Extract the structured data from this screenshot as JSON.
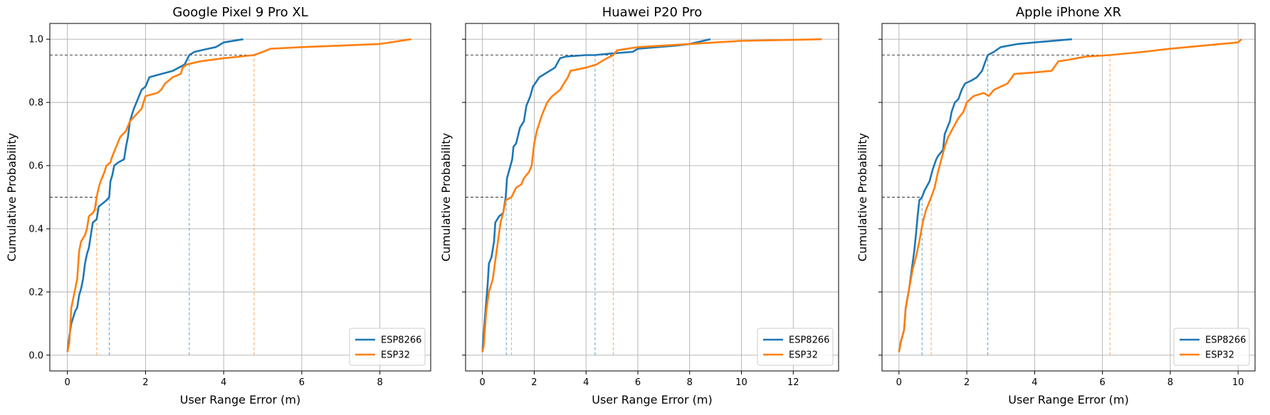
{
  "chart_data": [
    {
      "type": "line",
      "title": "Google Pixel 9 Pro XL",
      "xlabel": "User Range Error (m)",
      "ylabel": "Cumulative Probability",
      "xlim": [
        -0.45,
        9.3
      ],
      "ylim": [
        -0.05,
        1.05
      ],
      "xticks": [
        0,
        2,
        4,
        6,
        8
      ],
      "yticks": [
        0.0,
        0.2,
        0.4,
        0.6,
        0.8,
        1.0
      ],
      "xtick_labels": [
        "0",
        "2",
        "4",
        "6",
        "8"
      ],
      "ytick_labels": [
        "0.0",
        "0.2",
        "0.4",
        "0.6",
        "0.8",
        "1.0"
      ],
      "grid": true,
      "legend_position": "lower-right",
      "series": [
        {
          "name": "ESP8266",
          "color": "#1f77b4",
          "p50": 1.07,
          "p95": 3.12,
          "points": [
            [
              0,
              0.01
            ],
            [
              0.05,
              0.06
            ],
            [
              0.1,
              0.1
            ],
            [
              0.2,
              0.14
            ],
            [
              0.25,
              0.15
            ],
            [
              0.3,
              0.19
            ],
            [
              0.35,
              0.21
            ],
            [
              0.4,
              0.24
            ],
            [
              0.45,
              0.29
            ],
            [
              0.5,
              0.32
            ],
            [
              0.55,
              0.34
            ],
            [
              0.6,
              0.38
            ],
            [
              0.65,
              0.42
            ],
            [
              0.75,
              0.43
            ],
            [
              0.8,
              0.47
            ],
            [
              1.0,
              0.49
            ],
            [
              1.07,
              0.5
            ],
            [
              1.1,
              0.55
            ],
            [
              1.15,
              0.57
            ],
            [
              1.2,
              0.6
            ],
            [
              1.3,
              0.61
            ],
            [
              1.45,
              0.62
            ],
            [
              1.5,
              0.66
            ],
            [
              1.55,
              0.69
            ],
            [
              1.6,
              0.74
            ],
            [
              1.7,
              0.78
            ],
            [
              1.8,
              0.81
            ],
            [
              1.9,
              0.84
            ],
            [
              2.0,
              0.85
            ],
            [
              2.1,
              0.88
            ],
            [
              2.4,
              0.89
            ],
            [
              2.7,
              0.9
            ],
            [
              3.0,
              0.92
            ],
            [
              3.12,
              0.95
            ],
            [
              3.25,
              0.96
            ],
            [
              3.6,
              0.97
            ],
            [
              3.8,
              0.975
            ],
            [
              4.0,
              0.99
            ],
            [
              4.5,
              1.0
            ]
          ]
        },
        {
          "name": "ESP32",
          "color": "#ff7f0e",
          "p50": 0.75,
          "p95": 4.78,
          "points": [
            [
              0,
              0.01
            ],
            [
              0.05,
              0.04
            ],
            [
              0.1,
              0.15
            ],
            [
              0.15,
              0.18
            ],
            [
              0.25,
              0.24
            ],
            [
              0.3,
              0.33
            ],
            [
              0.35,
              0.36
            ],
            [
              0.45,
              0.38
            ],
            [
              0.5,
              0.4
            ],
            [
              0.55,
              0.44
            ],
            [
              0.65,
              0.45
            ],
            [
              0.7,
              0.46
            ],
            [
              0.75,
              0.5
            ],
            [
              0.8,
              0.53
            ],
            [
              0.85,
              0.55
            ],
            [
              0.95,
              0.58
            ],
            [
              1.0,
              0.6
            ],
            [
              1.1,
              0.61
            ],
            [
              1.15,
              0.63
            ],
            [
              1.25,
              0.66
            ],
            [
              1.35,
              0.69
            ],
            [
              1.5,
              0.71
            ],
            [
              1.6,
              0.74
            ],
            [
              1.75,
              0.76
            ],
            [
              1.9,
              0.78
            ],
            [
              2.0,
              0.82
            ],
            [
              2.3,
              0.83
            ],
            [
              2.4,
              0.84
            ],
            [
              2.5,
              0.86
            ],
            [
              2.6,
              0.87
            ],
            [
              2.7,
              0.88
            ],
            [
              2.9,
              0.89
            ],
            [
              2.95,
              0.91
            ],
            [
              3.05,
              0.92
            ],
            [
              3.4,
              0.93
            ],
            [
              4.0,
              0.94
            ],
            [
              4.78,
              0.95
            ],
            [
              5.0,
              0.96
            ],
            [
              5.2,
              0.97
            ],
            [
              6.0,
              0.975
            ],
            [
              8.0,
              0.985
            ],
            [
              8.8,
              1.0
            ]
          ]
        }
      ]
    },
    {
      "type": "line",
      "title": "Huawei P20 Pro",
      "xlabel": "User Range Error (m)",
      "ylabel": "Cumulative Probability",
      "xlim": [
        -0.65,
        13.75
      ],
      "ylim": [
        -0.05,
        1.05
      ],
      "xticks": [
        0,
        2,
        4,
        6,
        8,
        10,
        12
      ],
      "yticks": [
        0.0,
        0.2,
        0.4,
        0.6,
        0.8,
        1.0
      ],
      "xtick_labels": [
        "0",
        "2",
        "4",
        "6",
        "8",
        "10",
        "12"
      ],
      "ytick_labels": [
        "0.0",
        "0.2",
        "0.4",
        "0.6",
        "0.8",
        "1.0"
      ],
      "grid": true,
      "legend_position": "lower-right",
      "series": [
        {
          "name": "ESP8266",
          "color": "#1f77b4",
          "p50": 0.92,
          "p95": 4.35,
          "points": [
            [
              0,
              0.01
            ],
            [
              0.05,
              0.07
            ],
            [
              0.12,
              0.14
            ],
            [
              0.2,
              0.22
            ],
            [
              0.25,
              0.29
            ],
            [
              0.35,
              0.31
            ],
            [
              0.45,
              0.36
            ],
            [
              0.5,
              0.42
            ],
            [
              0.65,
              0.44
            ],
            [
              0.8,
              0.45
            ],
            [
              0.9,
              0.5
            ],
            [
              0.95,
              0.56
            ],
            [
              1.05,
              0.59
            ],
            [
              1.15,
              0.62
            ],
            [
              1.2,
              0.66
            ],
            [
              1.3,
              0.67
            ],
            [
              1.45,
              0.72
            ],
            [
              1.6,
              0.74
            ],
            [
              1.7,
              0.79
            ],
            [
              1.85,
              0.82
            ],
            [
              1.95,
              0.85
            ],
            [
              2.2,
              0.88
            ],
            [
              2.4,
              0.89
            ],
            [
              2.8,
              0.91
            ],
            [
              3.0,
              0.94
            ],
            [
              3.2,
              0.945
            ],
            [
              4.0,
              0.95
            ],
            [
              4.35,
              0.95
            ],
            [
              5.0,
              0.955
            ],
            [
              5.8,
              0.96
            ],
            [
              6.0,
              0.97
            ],
            [
              7.5,
              0.98
            ],
            [
              8.0,
              0.985
            ],
            [
              8.8,
              1.0
            ]
          ]
        },
        {
          "name": "ESP32",
          "color": "#ff7f0e",
          "p50": 1.12,
          "p95": 5.05,
          "points": [
            [
              0,
              0.01
            ],
            [
              0.05,
              0.03
            ],
            [
              0.15,
              0.14
            ],
            [
              0.25,
              0.2
            ],
            [
              0.4,
              0.24
            ],
            [
              0.5,
              0.3
            ],
            [
              0.6,
              0.36
            ],
            [
              0.7,
              0.42
            ],
            [
              0.8,
              0.45
            ],
            [
              0.9,
              0.49
            ],
            [
              1.12,
              0.5
            ],
            [
              1.3,
              0.53
            ],
            [
              1.5,
              0.54
            ],
            [
              1.6,
              0.56
            ],
            [
              1.8,
              0.58
            ],
            [
              1.9,
              0.6
            ],
            [
              2.0,
              0.67
            ],
            [
              2.1,
              0.71
            ],
            [
              2.3,
              0.76
            ],
            [
              2.5,
              0.8
            ],
            [
              2.7,
              0.82
            ],
            [
              3.0,
              0.84
            ],
            [
              3.3,
              0.88
            ],
            [
              3.4,
              0.9
            ],
            [
              4.0,
              0.91
            ],
            [
              4.4,
              0.92
            ],
            [
              4.7,
              0.935
            ],
            [
              5.05,
              0.95
            ],
            [
              5.2,
              0.965
            ],
            [
              6.0,
              0.975
            ],
            [
              8.0,
              0.985
            ],
            [
              10.0,
              0.995
            ],
            [
              13.1,
              1.0
            ]
          ]
        }
      ]
    },
    {
      "type": "line",
      "title": "Apple iPhone XR",
      "xlabel": "User Range Error (m)",
      "ylabel": "Cumulative Probability",
      "xlim": [
        -0.5,
        10.5
      ],
      "ylim": [
        -0.05,
        1.05
      ],
      "xticks": [
        0,
        2,
        4,
        6,
        8,
        10
      ],
      "yticks": [
        0.0,
        0.2,
        0.4,
        0.6,
        0.8,
        1.0
      ],
      "xtick_labels": [
        "0",
        "2",
        "4",
        "6",
        "8",
        "10"
      ],
      "ytick_labels": [
        "0.0",
        "0.2",
        "0.4",
        "0.6",
        "0.8",
        "1.0"
      ],
      "grid": true,
      "legend_position": "lower-right",
      "series": [
        {
          "name": "ESP8266",
          "color": "#1f77b4",
          "p50": 0.68,
          "p95": 2.62,
          "points": [
            [
              0,
              0.01
            ],
            [
              0.05,
              0.04
            ],
            [
              0.15,
              0.08
            ],
            [
              0.2,
              0.15
            ],
            [
              0.3,
              0.21
            ],
            [
              0.4,
              0.29
            ],
            [
              0.45,
              0.33
            ],
            [
              0.5,
              0.38
            ],
            [
              0.55,
              0.44
            ],
            [
              0.6,
              0.49
            ],
            [
              0.68,
              0.5
            ],
            [
              0.75,
              0.52
            ],
            [
              0.9,
              0.55
            ],
            [
              1.0,
              0.59
            ],
            [
              1.1,
              0.62
            ],
            [
              1.15,
              0.63
            ],
            [
              1.3,
              0.65
            ],
            [
              1.35,
              0.7
            ],
            [
              1.5,
              0.74
            ],
            [
              1.55,
              0.77
            ],
            [
              1.65,
              0.8
            ],
            [
              1.75,
              0.81
            ],
            [
              1.85,
              0.84
            ],
            [
              1.95,
              0.86
            ],
            [
              2.15,
              0.87
            ],
            [
              2.3,
              0.88
            ],
            [
              2.45,
              0.9
            ],
            [
              2.55,
              0.93
            ],
            [
              2.62,
              0.95
            ],
            [
              2.8,
              0.96
            ],
            [
              3.0,
              0.975
            ],
            [
              3.5,
              0.985
            ],
            [
              4.0,
              0.99
            ],
            [
              5.1,
              1.0
            ]
          ]
        },
        {
          "name": "ESP32",
          "color": "#ff7f0e",
          "p50": 0.95,
          "p95": 6.22,
          "points": [
            [
              0,
              0.01
            ],
            [
              0.05,
              0.04
            ],
            [
              0.15,
              0.08
            ],
            [
              0.2,
              0.15
            ],
            [
              0.3,
              0.21
            ],
            [
              0.4,
              0.27
            ],
            [
              0.5,
              0.31
            ],
            [
              0.6,
              0.36
            ],
            [
              0.7,
              0.42
            ],
            [
              0.8,
              0.46
            ],
            [
              0.95,
              0.5
            ],
            [
              1.05,
              0.53
            ],
            [
              1.15,
              0.58
            ],
            [
              1.25,
              0.62
            ],
            [
              1.35,
              0.66
            ],
            [
              1.45,
              0.69
            ],
            [
              1.6,
              0.72
            ],
            [
              1.75,
              0.75
            ],
            [
              1.9,
              0.77
            ],
            [
              2.0,
              0.8
            ],
            [
              2.2,
              0.82
            ],
            [
              2.5,
              0.83
            ],
            [
              2.65,
              0.82
            ],
            [
              2.8,
              0.84
            ],
            [
              3.0,
              0.85
            ],
            [
              3.2,
              0.86
            ],
            [
              3.4,
              0.89
            ],
            [
              4.0,
              0.895
            ],
            [
              4.5,
              0.9
            ],
            [
              4.7,
              0.93
            ],
            [
              5.0,
              0.935
            ],
            [
              5.5,
              0.945
            ],
            [
              6.22,
              0.95
            ],
            [
              7.2,
              0.96
            ],
            [
              8.0,
              0.97
            ],
            [
              9.0,
              0.98
            ],
            [
              10.0,
              0.99
            ],
            [
              10.1,
              1.0
            ]
          ]
        }
      ]
    }
  ]
}
